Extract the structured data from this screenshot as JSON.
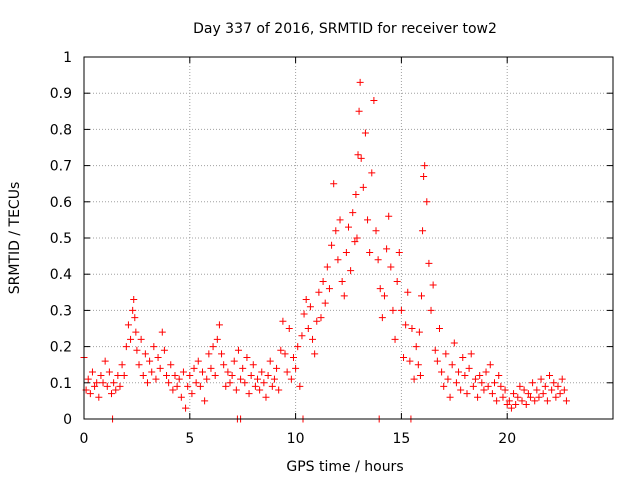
{
  "chart_data": {
    "type": "scatter",
    "title": "Day 337 of 2016, SRMTID for receiver tow2",
    "xlabel": "GPS time / hours",
    "ylabel": "SRMTID / TECUs",
    "xlim": [
      0,
      25
    ],
    "ylim": [
      0,
      1
    ],
    "x_ticks": [
      0,
      5,
      10,
      15,
      20
    ],
    "y_ticks": [
      0,
      0.1,
      0.2,
      0.3,
      0.4,
      0.5,
      0.6,
      0.7,
      0.8,
      0.9,
      1
    ],
    "x_tick_labels": [
      "0",
      "5",
      "10",
      "15",
      "20"
    ],
    "y_tick_labels": [
      "0",
      "0.1",
      "0.2",
      "0.3",
      "0.4",
      "0.5",
      "0.6",
      "0.7",
      "0.8",
      "0.9",
      "1"
    ],
    "grid": true,
    "marker": "+",
    "series": [
      {
        "name": "tow2",
        "color": "#ff0000",
        "x": [
          0.0,
          0.1,
          0.2,
          0.3,
          0.4,
          0.5,
          0.6,
          0.7,
          0.8,
          0.9,
          1.0,
          1.1,
          1.2,
          1.3,
          1.4,
          1.5,
          1.6,
          1.7,
          1.8,
          1.9,
          2.0,
          2.1,
          2.2,
          2.3,
          2.35,
          2.4,
          2.45,
          2.5,
          2.6,
          2.7,
          2.8,
          2.9,
          3.0,
          3.1,
          3.2,
          3.3,
          3.4,
          3.5,
          3.6,
          3.7,
          3.8,
          3.9,
          4.0,
          4.1,
          4.2,
          4.3,
          4.4,
          4.5,
          4.6,
          4.7,
          4.8,
          4.9,
          5.0,
          5.1,
          5.2,
          5.3,
          5.4,
          5.5,
          5.6,
          5.7,
          5.8,
          5.9,
          6.0,
          6.1,
          6.2,
          6.3,
          6.4,
          6.5,
          6.6,
          6.7,
          6.8,
          6.9,
          7.0,
          7.1,
          7.2,
          7.3,
          7.4,
          7.5,
          7.6,
          7.7,
          7.8,
          7.9,
          8.0,
          8.1,
          8.2,
          8.3,
          8.4,
          8.5,
          8.6,
          8.7,
          8.8,
          8.9,
          9.0,
          9.1,
          9.2,
          9.3,
          9.4,
          9.5,
          9.6,
          9.7,
          9.8,
          9.9,
          10.0,
          10.1,
          10.2,
          10.3,
          10.4,
          10.5,
          10.6,
          10.7,
          10.8,
          10.9,
          11.0,
          11.1,
          11.2,
          11.3,
          11.4,
          11.5,
          11.6,
          11.7,
          11.8,
          11.9,
          12.0,
          12.1,
          12.2,
          12.3,
          12.4,
          12.5,
          12.6,
          12.7,
          12.8,
          12.85,
          12.9,
          12.95,
          13.0,
          13.05,
          13.1,
          13.2,
          13.3,
          13.4,
          13.5,
          13.6,
          13.7,
          13.8,
          13.9,
          14.0,
          14.1,
          14.2,
          14.3,
          14.4,
          14.5,
          14.6,
          14.7,
          14.8,
          14.9,
          15.0,
          15.1,
          15.2,
          15.3,
          15.4,
          15.5,
          15.6,
          15.7,
          15.8,
          15.85,
          15.9,
          15.95,
          16.0,
          16.05,
          16.1,
          16.2,
          16.3,
          16.4,
          16.5,
          16.6,
          16.7,
          16.8,
          16.9,
          17.0,
          17.1,
          17.2,
          17.3,
          17.4,
          17.5,
          17.6,
          17.7,
          17.8,
          17.9,
          18.0,
          18.1,
          18.2,
          18.3,
          18.4,
          18.5,
          18.6,
          18.7,
          18.8,
          18.9,
          19.0,
          19.1,
          19.2,
          19.3,
          19.4,
          19.5,
          19.6,
          19.7,
          19.8,
          19.9,
          20.0,
          20.1,
          20.2,
          20.3,
          20.4,
          20.5,
          20.6,
          20.7,
          20.8,
          20.9,
          21.0,
          21.1,
          21.2,
          21.3,
          21.4,
          21.5,
          21.6,
          21.7,
          21.8,
          21.9,
          22.0,
          22.1,
          22.2,
          22.3,
          22.4,
          22.5,
          22.6,
          22.7,
          22.8
        ],
        "y": [
          0.17,
          0.08,
          0.11,
          0.07,
          0.13,
          0.09,
          0.1,
          0.06,
          0.12,
          0.1,
          0.16,
          0.09,
          0.13,
          0.07,
          0.1,
          0.08,
          0.12,
          0.09,
          0.15,
          0.12,
          0.2,
          0.26,
          0.22,
          0.3,
          0.33,
          0.28,
          0.24,
          0.19,
          0.15,
          0.22,
          0.12,
          0.18,
          0.1,
          0.16,
          0.13,
          0.2,
          0.11,
          0.17,
          0.14,
          0.24,
          0.19,
          0.12,
          0.1,
          0.15,
          0.08,
          0.12,
          0.09,
          0.11,
          0.06,
          0.13,
          0.03,
          0.09,
          0.12,
          0.07,
          0.14,
          0.1,
          0.16,
          0.09,
          0.13,
          0.05,
          0.11,
          0.18,
          0.14,
          0.2,
          0.12,
          0.22,
          0.26,
          0.18,
          0.15,
          0.09,
          0.13,
          0.1,
          0.12,
          0.16,
          0.08,
          0.19,
          0.11,
          0.14,
          0.1,
          0.17,
          0.07,
          0.12,
          0.15,
          0.09,
          0.11,
          0.08,
          0.13,
          0.1,
          0.06,
          0.12,
          0.16,
          0.09,
          0.11,
          0.14,
          0.08,
          0.19,
          0.27,
          0.18,
          0.13,
          0.25,
          0.11,
          0.17,
          0.14,
          0.2,
          0.09,
          0.23,
          0.29,
          0.33,
          0.25,
          0.31,
          0.22,
          0.18,
          0.27,
          0.35,
          0.28,
          0.38,
          0.32,
          0.42,
          0.36,
          0.48,
          0.65,
          0.52,
          0.44,
          0.55,
          0.38,
          0.34,
          0.46,
          0.53,
          0.41,
          0.57,
          0.49,
          0.62,
          0.5,
          0.73,
          0.85,
          0.93,
          0.72,
          0.64,
          0.79,
          0.55,
          0.46,
          0.68,
          0.88,
          0.52,
          0.44,
          0.36,
          0.28,
          0.34,
          0.47,
          0.56,
          0.42,
          0.3,
          0.22,
          0.38,
          0.46,
          0.3,
          0.17,
          0.26,
          0.35,
          0.16,
          0.25,
          0.11,
          0.2,
          0.15,
          0.24,
          0.12,
          0.34,
          0.52,
          0.67,
          0.7,
          0.6,
          0.43,
          0.3,
          0.37,
          0.19,
          0.16,
          0.25,
          0.13,
          0.09,
          0.18,
          0.11,
          0.06,
          0.15,
          0.21,
          0.1,
          0.13,
          0.08,
          0.17,
          0.12,
          0.07,
          0.14,
          0.18,
          0.09,
          0.11,
          0.06,
          0.12,
          0.1,
          0.08,
          0.13,
          0.09,
          0.15,
          0.07,
          0.1,
          0.05,
          0.12,
          0.09,
          0.06,
          0.08,
          0.04,
          0.05,
          0.03,
          0.07,
          0.04,
          0.06,
          0.09,
          0.05,
          0.08,
          0.04,
          0.07,
          0.06,
          0.1,
          0.05,
          0.08,
          0.06,
          0.11,
          0.07,
          0.09,
          0.05,
          0.12,
          0.08,
          0.1,
          0.06,
          0.09,
          0.07,
          0.11,
          0.08,
          0.05
        ]
      }
    ],
    "zero_markers_x": [
      1.35,
      7.25,
      7.4,
      10.35,
      13.95,
      15.45
    ]
  }
}
